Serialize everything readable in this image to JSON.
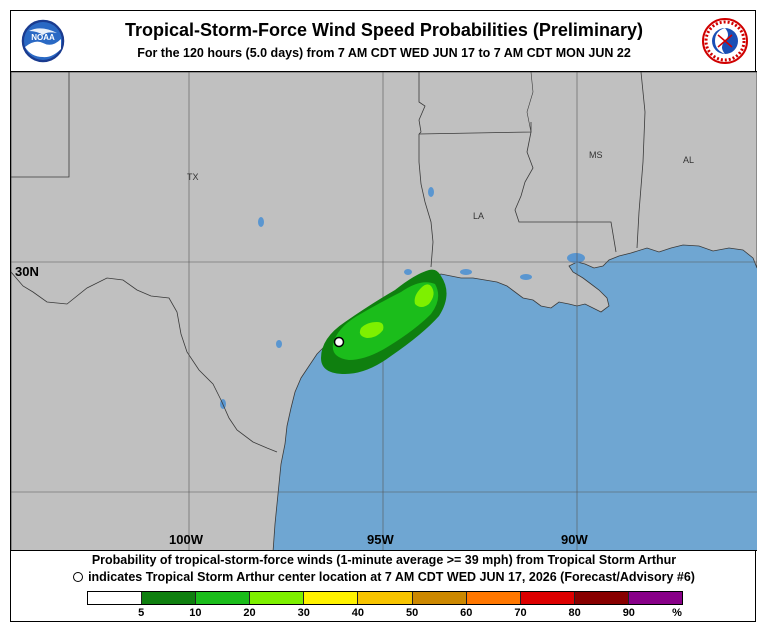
{
  "header": {
    "title": "Tropical-Storm-Force Wind Speed Probabilities (Preliminary)",
    "subtitle": "For the 120 hours (5.0 days) from 7 AM CDT WED JUN 17 to 7 AM CDT MON JUN 22",
    "left_logo": "NOAA",
    "right_logo": "NATIONAL WEATHER SERVICE"
  },
  "map": {
    "state_labels": [
      "TX",
      "LA",
      "MS",
      "AL"
    ],
    "lat_label": "30N",
    "lon_labels": [
      "100W",
      "95W",
      "90W"
    ],
    "colors": {
      "land": "#c0c0c0",
      "water": "#6fa6d2",
      "lake": "#5a96d0"
    }
  },
  "footer": {
    "caption_line1": "Probability of tropical-storm-force winds (1-minute average >= 39 mph) from Tropical Storm Arthur",
    "caption_line2": "indicates Tropical Storm Arthur center location at 7 AM CDT WED JUN 17, 2026 (Forecast/Advisory #6)"
  },
  "legend": {
    "colors": [
      "#ffffff",
      "#0f7f0f",
      "#1bbd1b",
      "#7ef000",
      "#fff200",
      "#f7c400",
      "#cc8800",
      "#ff7700",
      "#dd0000",
      "#880000",
      "#880088"
    ],
    "labels": [
      "5",
      "10",
      "20",
      "30",
      "40",
      "50",
      "60",
      "70",
      "80",
      "90",
      "%"
    ]
  }
}
